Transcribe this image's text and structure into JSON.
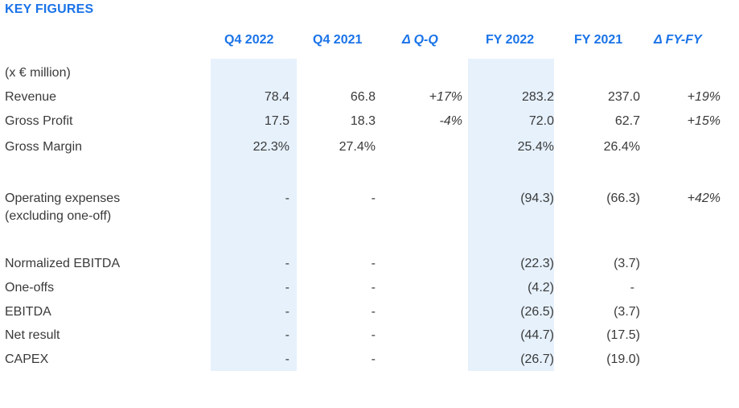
{
  "title": "KEY FIGURES",
  "columns": [
    "Q4 2022",
    "Q4 2021",
    "Δ Q-Q",
    "FY 2022",
    "FY 2021",
    "Δ FY-FY"
  ],
  "unit_label": "(x € million)",
  "rows": [
    {
      "label": "Revenue",
      "values": [
        "78.4",
        "66.8",
        "+17%",
        "283.2",
        "237.0",
        "+19%"
      ]
    },
    {
      "label": "Gross Profit",
      "values": [
        "17.5",
        "18.3",
        "-4%",
        "72.0",
        "62.7",
        "+15%"
      ]
    },
    {
      "label": "Gross Margin",
      "values": [
        "22.3%",
        "27.4%",
        "",
        "25.4%",
        "26.4%",
        ""
      ]
    },
    {
      "label_line1": "Operating expenses",
      "label_line2": "(excluding one-off)",
      "values": [
        "-",
        "-",
        "",
        "(94.3)",
        "(66.3)",
        "+42%"
      ]
    },
    {
      "label": "Normalized EBITDA",
      "values": [
        "-",
        "-",
        "",
        "(22.3)",
        "(3.7)",
        ""
      ]
    },
    {
      "label": "One-offs",
      "values": [
        "-",
        "-",
        "",
        "(4.2)",
        "-",
        ""
      ]
    },
    {
      "label": "EBITDA",
      "values": [
        "-",
        "-",
        "",
        "(26.5)",
        "(3.7)",
        ""
      ]
    },
    {
      "label": "Net result",
      "values": [
        "-",
        "-",
        "",
        "(44.7)",
        "(17.5)",
        ""
      ]
    },
    {
      "label": "CAPEX",
      "values": [
        "-",
        "-",
        "",
        "(26.7)",
        "(19.0)",
        ""
      ]
    }
  ],
  "colors": {
    "accent": "#1a73e8",
    "highlight": "#e6f1fc",
    "text": "#3a3a3a"
  }
}
